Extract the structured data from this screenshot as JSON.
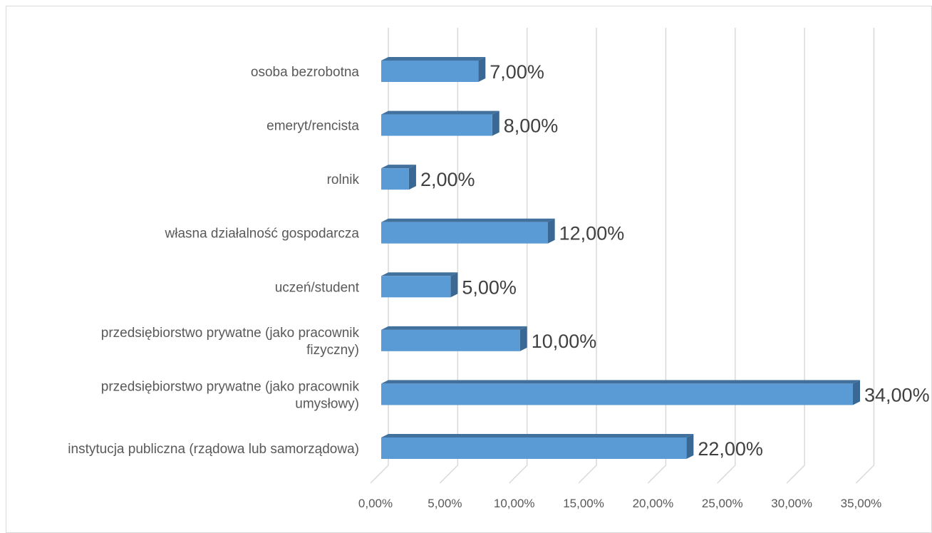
{
  "chart_data": {
    "type": "bar",
    "orientation": "horizontal",
    "style": "3d",
    "categories": [
      [
        "osoba bezrobotna"
      ],
      [
        "emeryt/rencista"
      ],
      [
        "rolnik"
      ],
      [
        "własna działalność gospodarcza"
      ],
      [
        "uczeń/student"
      ],
      [
        "przedsiębiorstwo prywatne (jako pracownik",
        "fizyczny)"
      ],
      [
        "przedsiębiorstwo prywatne (jako pracownik",
        "umysłowy)"
      ],
      [
        "instytucja publiczna (rządowa lub samorządowa)"
      ]
    ],
    "values": [
      7,
      8,
      2,
      12,
      5,
      10,
      34,
      22
    ],
    "data_labels": [
      "7,00%",
      "8,00%",
      "2,00%",
      "12,00%",
      "5,00%",
      "10,00%",
      "34,00%",
      "22,00%"
    ],
    "x_ticks": [
      0,
      5,
      10,
      15,
      20,
      25,
      30,
      35
    ],
    "x_tick_labels": [
      "0,00%",
      "5,00%",
      "10,00%",
      "15,00%",
      "20,00%",
      "25,00%",
      "30,00%",
      "35,00%"
    ],
    "xlim": [
      0,
      35
    ],
    "grid": true,
    "colors": {
      "bar_front": "#5b9bd5",
      "bar_top": "#41719c",
      "bar_side": "#3a6894",
      "grid": "#d9d9d9"
    }
  }
}
